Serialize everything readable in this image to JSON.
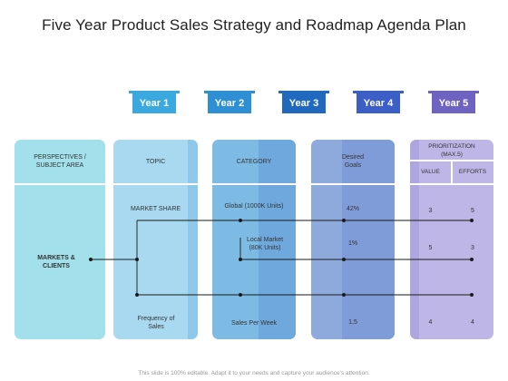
{
  "title": "Five Year Product Sales Strategy and Roadmap Agenda Plan",
  "years": [
    {
      "label": "Year 1",
      "color": "#3ba9df"
    },
    {
      "label": "Year 2",
      "color": "#2e8fd4"
    },
    {
      "label": "Year 3",
      "color": "#2169bf"
    },
    {
      "label": "Year 4",
      "color": "#3c5ec7"
    },
    {
      "label": "Year 5",
      "color": "#6f63c2"
    }
  ],
  "headers": {
    "perspectives": "PERSPECTIVES / SUBJECT AREA",
    "topic": "TOPIC",
    "category": "CATEGORY",
    "desired_goals": "Desired Goals",
    "prioritization": "PRIORITIZATION (MAX.5)",
    "value": "VALUE",
    "efforts": "EFFORTS"
  },
  "subject": "MARKETS & CLIENTS",
  "rows": [
    {
      "topic": "MARKET  SHARE",
      "category": "Global (1000K Units)",
      "goal": "42%",
      "value": "3",
      "efforts": "5"
    },
    {
      "topic": "",
      "category": "Local Market (80K Units)",
      "goal": "1%",
      "value": "5",
      "efforts": "3"
    },
    {
      "topic": "Frequency of Sales",
      "category": "Sales Per Week",
      "goal": "1,5",
      "value": "4",
      "efforts": "4"
    }
  ],
  "footer": "This slide is 100% editable. Adapt it to your needs and capture your audience's attention."
}
